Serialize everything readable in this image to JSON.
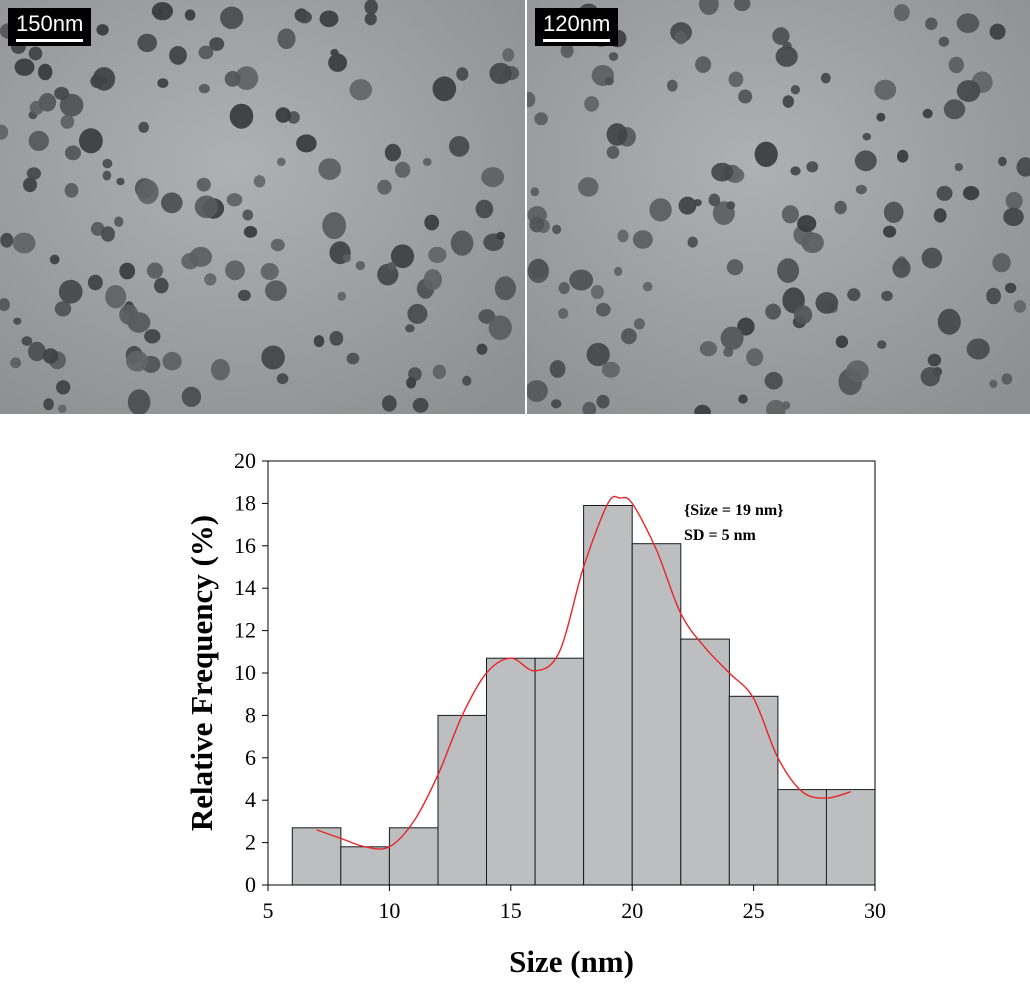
{
  "images": {
    "left": {
      "scale_label": "150nm",
      "description_icon": "tem-micrograph"
    },
    "right": {
      "scale_label": "120nm",
      "description_icon": "tem-micrograph"
    }
  },
  "colors": {
    "bar_fill": "#bcbec0",
    "bar_stroke": "#1a1a1a",
    "curve": "#e8262a",
    "tem_background": "#a3a5a7",
    "particle": "#4a4c4e"
  },
  "chart_data": {
    "type": "bar",
    "xlabel": "Size (nm)",
    "ylabel": "Relative Frequency (%)",
    "xlim": [
      5,
      30
    ],
    "ylim": [
      0,
      20
    ],
    "xticks": [
      5,
      10,
      15,
      20,
      25,
      30
    ],
    "yticks": [
      0,
      2,
      4,
      6,
      8,
      10,
      12,
      14,
      16,
      18,
      20
    ],
    "bins": [
      {
        "start": 6,
        "end": 8,
        "value": 2.7
      },
      {
        "start": 8,
        "end": 10,
        "value": 1.8
      },
      {
        "start": 10,
        "end": 12,
        "value": 2.7
      },
      {
        "start": 12,
        "end": 14,
        "value": 8.0
      },
      {
        "start": 14,
        "end": 16,
        "value": 10.7
      },
      {
        "start": 16,
        "end": 18,
        "value": 10.7
      },
      {
        "start": 18,
        "end": 20,
        "value": 17.9
      },
      {
        "start": 20,
        "end": 22,
        "value": 16.1
      },
      {
        "start": 22,
        "end": 24,
        "value": 11.6
      },
      {
        "start": 24,
        "end": 26,
        "value": 8.9
      },
      {
        "start": 26,
        "end": 28,
        "value": 4.5
      },
      {
        "start": 28,
        "end": 30,
        "value": 4.5
      }
    ],
    "fit_curve": {
      "x": [
        7,
        8,
        9,
        10,
        11,
        12,
        13,
        14,
        15,
        16,
        17,
        18,
        19,
        19.5,
        20,
        21,
        22,
        23,
        24,
        25,
        26,
        27,
        28,
        29
      ],
      "y": [
        2.6,
        2.2,
        1.8,
        1.8,
        3.0,
        5.2,
        8.0,
        10.0,
        10.7,
        10.1,
        11.0,
        15.0,
        18.0,
        18.25,
        18.0,
        15.8,
        12.8,
        11.2,
        10.0,
        8.8,
        6.0,
        4.4,
        4.1,
        4.4
      ]
    },
    "annotations": [
      "{Size = 19 nm}",
      "SD = 5 nm"
    ],
    "grid": false,
    "legend": "none"
  }
}
